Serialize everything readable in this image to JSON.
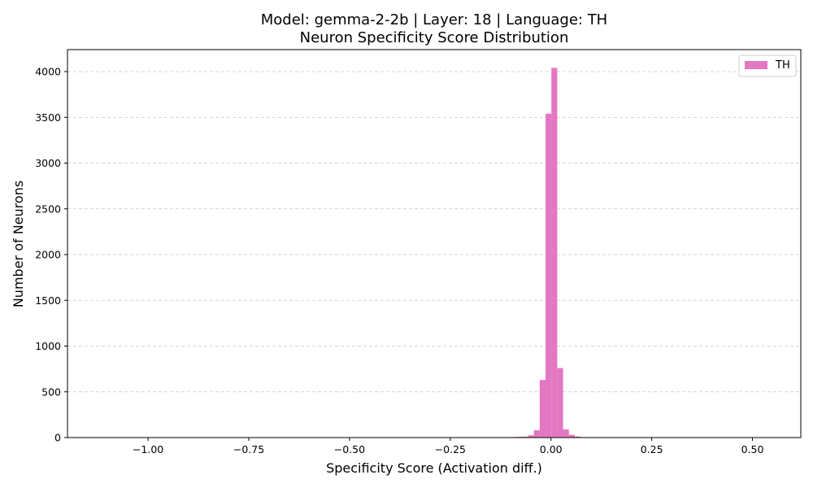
{
  "chart_data": {
    "type": "bar",
    "title": "Model: gemma-2-2b | Layer: 18 | Language: TH",
    "subtitle": "Neuron Specificity Score Distribution",
    "xlabel": "Specificity Score (Activation diff.)",
    "ylabel": "Number of Neurons",
    "xlim": [
      -1.2,
      0.62
    ],
    "ylim": [
      0,
      4240
    ],
    "xticks": [
      -1.0,
      -0.75,
      -0.5,
      -0.25,
      0.0,
      0.25,
      0.5
    ],
    "xtick_labels": [
      "−1.00",
      "−0.75",
      "−0.50",
      "−0.25",
      "0.00",
      "0.25",
      "0.50"
    ],
    "yticks": [
      0,
      500,
      1000,
      1500,
      2000,
      2500,
      3000,
      3500,
      4000
    ],
    "ytick_labels": [
      "0",
      "500",
      "1000",
      "1500",
      "2000",
      "2500",
      "3000",
      "3500",
      "4000"
    ],
    "grid": "y-dashed",
    "legend_position": "top-right",
    "color": "#e377c2",
    "series": [
      {
        "name": "TH",
        "bins": [
          {
            "x0": -0.26,
            "x1": -0.2455,
            "count": 3
          },
          {
            "x0": -0.115,
            "x1": -0.1005,
            "count": 4
          },
          {
            "x0": -0.1005,
            "x1": -0.086,
            "count": 6
          },
          {
            "x0": -0.086,
            "x1": -0.0715,
            "count": 8
          },
          {
            "x0": -0.0715,
            "x1": -0.057,
            "count": 10
          },
          {
            "x0": -0.057,
            "x1": -0.0425,
            "count": 25
          },
          {
            "x0": -0.0425,
            "x1": -0.028,
            "count": 80
          },
          {
            "x0": -0.028,
            "x1": -0.0135,
            "count": 630
          },
          {
            "x0": -0.0135,
            "x1": 0.001,
            "count": 3540
          },
          {
            "x0": 0.001,
            "x1": 0.0155,
            "count": 4040
          },
          {
            "x0": 0.0155,
            "x1": 0.03,
            "count": 760
          },
          {
            "x0": 0.03,
            "x1": 0.0445,
            "count": 90
          },
          {
            "x0": 0.0445,
            "x1": 0.059,
            "count": 30
          },
          {
            "x0": 0.059,
            "x1": 0.0735,
            "count": 12
          },
          {
            "x0": 0.0735,
            "x1": 0.088,
            "count": 5
          },
          {
            "x0": 0.117,
            "x1": 0.1315,
            "count": 4
          },
          {
            "x0": 0.1895,
            "x1": 0.204,
            "count": 3
          }
        ]
      }
    ]
  }
}
